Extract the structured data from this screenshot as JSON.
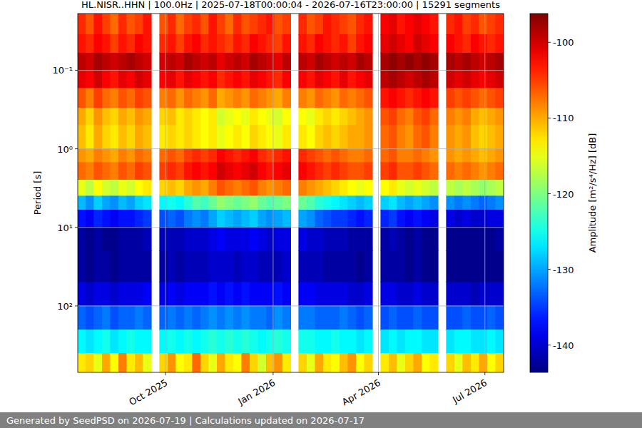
{
  "chart_data": {
    "type": "heatmap",
    "title": "HL.NISR..HHN | 100.0Hz | 2025-07-18T00:00:04 - 2026-07-16T23:00:00 | 15291 segments",
    "y_label": "Period [s]",
    "footer": "Generated by SeedPSD on 2026-07-19 | Calculations updated on 2026-07-17",
    "log": "y",
    "grid": true,
    "xlim": [
      "2025-07-18",
      "2026-07-17"
    ],
    "xticks": [
      {
        "value": "2025-10-01",
        "label": "Oct 2025"
      },
      {
        "value": "2026-01-01",
        "label": "Jan 2026"
      },
      {
        "value": "2026-04-01",
        "label": "Apr 2026"
      },
      {
        "value": "2026-07-01",
        "label": "Jul 2026"
      }
    ],
    "ylim": [
      700,
      0.019
    ],
    "yticks": [
      {
        "value": 0.1,
        "label": "10⁻¹"
      },
      {
        "value": 1,
        "label": "10⁰"
      },
      {
        "value": 10,
        "label": "10¹"
      },
      {
        "value": 100,
        "label": "10²"
      }
    ],
    "colorbar": {
      "label": "Amplitude [m²/s⁴/Hz] [dB]",
      "lim": [
        -143.6,
        -96.2
      ],
      "ticks": [
        -140,
        -130,
        -120,
        -110,
        -100
      ]
    },
    "x_edges": [
      "2025-07-18",
      "2025-07-25",
      "2025-08-01",
      "2025-08-08",
      "2025-08-15",
      "2025-08-22",
      "2025-08-29",
      "2025-09-05",
      "2025-09-12",
      "2025-09-19",
      "2025-09-26",
      "2025-10-03",
      "2025-10-10",
      "2025-10-17",
      "2025-10-24",
      "2025-10-31",
      "2025-11-07",
      "2025-11-14",
      "2025-11-21",
      "2025-11-28",
      "2025-12-05",
      "2025-12-12",
      "2025-12-19",
      "2025-12-26",
      "2026-01-02",
      "2026-01-09",
      "2026-01-16",
      "2026-01-23",
      "2026-01-30",
      "2026-02-06",
      "2026-02-13",
      "2026-02-20",
      "2026-02-27",
      "2026-03-06",
      "2026-03-13",
      "2026-03-20",
      "2026-03-27",
      "2026-04-03",
      "2026-04-10",
      "2026-04-17",
      "2026-04-24",
      "2026-05-01",
      "2026-05-08",
      "2026-05-15",
      "2026-05-22",
      "2026-05-29",
      "2026-06-05",
      "2026-06-12",
      "2026-06-19",
      "2026-06-26",
      "2026-07-03",
      "2026-07-10",
      "2026-07-17"
    ],
    "y_edges": [
      0.019,
      0.035,
      0.06,
      0.1,
      0.17,
      0.3,
      0.5,
      1,
      1.5,
      2.5,
      4,
      6,
      10,
      20,
      50,
      100,
      200,
      400,
      700
    ],
    "cells": [
      [
        -104,
        -106,
        -103,
        -105,
        -107,
        -104,
        -106,
        -105,
        -103,
        null,
        -106,
        -104,
        -107,
        -105,
        -104,
        -106,
        -103,
        -105,
        -107,
        -104,
        -106,
        -105,
        -104,
        -103,
        -106,
        -105,
        null,
        -104,
        -106,
        -105,
        -103,
        -104,
        -105,
        -106,
        -104,
        -103,
        null,
        -102,
        -101,
        -103,
        -102,
        -101,
        -102,
        -103,
        null,
        -104,
        -103,
        -105,
        -104,
        -106,
        -105,
        -104
      ],
      [
        -103,
        -104,
        -102,
        -103,
        -105,
        -103,
        -104,
        -102,
        -103,
        null,
        -104,
        -103,
        -105,
        -103,
        -102,
        -104,
        -103,
        -104,
        -105,
        -103,
        -104,
        -102,
        -103,
        -104,
        -105,
        -103,
        null,
        -103,
        -104,
        -102,
        -103,
        -104,
        -103,
        -105,
        -103,
        -102,
        null,
        -101,
        -100,
        -101,
        -102,
        -100,
        -101,
        -102,
        null,
        -102,
        -103,
        -104,
        -102,
        -103,
        -104,
        -103
      ],
      [
        -99,
        -100,
        -98,
        -99,
        -100,
        -99,
        -98,
        -99,
        -100,
        null,
        -100,
        -99,
        -100,
        -98,
        -99,
        -100,
        -99,
        -101,
        -100,
        -99,
        -100,
        -98,
        -99,
        -100,
        -101,
        -99,
        null,
        -99,
        -100,
        -98,
        -99,
        -100,
        -99,
        -100,
        -98,
        -99,
        null,
        -98,
        -97,
        -98,
        -97,
        -98,
        -97,
        -98,
        null,
        -98,
        -99,
        -98,
        -99,
        -100,
        -99,
        -98
      ],
      [
        -101,
        -102,
        -100,
        -102,
        -103,
        -101,
        -102,
        -100,
        -101,
        null,
        -102,
        -101,
        -103,
        -101,
        -102,
        -103,
        -102,
        -104,
        -103,
        -102,
        -103,
        -101,
        -102,
        -103,
        -104,
        -102,
        null,
        -102,
        -103,
        -101,
        -102,
        -103,
        -101,
        -103,
        -102,
        -101,
        null,
        -99,
        -98,
        -99,
        -100,
        -99,
        -98,
        -99,
        null,
        -100,
        -101,
        -100,
        -101,
        -102,
        -101,
        -100
      ],
      [
        -106,
        -108,
        -105,
        -107,
        -108,
        -106,
        -107,
        -105,
        -106,
        null,
        -108,
        -107,
        -109,
        -107,
        -108,
        -109,
        -107,
        -110,
        -109,
        -108,
        -109,
        -107,
        -108,
        -109,
        -110,
        -108,
        null,
        -108,
        -109,
        -107,
        -108,
        -109,
        -107,
        -108,
        -107,
        -106,
        null,
        -103,
        -102,
        -103,
        -104,
        -103,
        -102,
        -103,
        null,
        -105,
        -106,
        -105,
        -106,
        -107,
        -106,
        -105
      ],
      [
        -110,
        -112,
        -109,
        -111,
        -112,
        -110,
        -111,
        -109,
        -110,
        null,
        -112,
        -111,
        -113,
        -112,
        -113,
        -114,
        -113,
        -116,
        -115,
        -114,
        -115,
        -113,
        -114,
        -115,
        -116,
        -114,
        null,
        -114,
        -115,
        -113,
        -112,
        -113,
        -112,
        -111,
        -110,
        -109,
        null,
        -106,
        -105,
        -107,
        -108,
        -106,
        -105,
        -107,
        null,
        -108,
        -109,
        -108,
        -110,
        -111,
        -110,
        -109
      ],
      [
        -111,
        -113,
        -110,
        -112,
        -113,
        -111,
        -112,
        -110,
        -111,
        null,
        -113,
        -112,
        -113,
        -112,
        -113,
        -114,
        -113,
        -115,
        -114,
        -113,
        -114,
        -112,
        -113,
        -114,
        -115,
        -113,
        null,
        -113,
        -114,
        -112,
        -111,
        -112,
        -111,
        -110,
        -110,
        -109,
        null,
        -107,
        -106,
        -108,
        -109,
        -107,
        -106,
        -108,
        null,
        -109,
        -110,
        -109,
        -111,
        -112,
        -111,
        -110
      ],
      [
        -109,
        -110,
        -108,
        -109,
        -110,
        -108,
        -109,
        -107,
        -108,
        null,
        -107,
        -106,
        -107,
        -105,
        -104,
        -105,
        -104,
        -102,
        -103,
        -104,
        -103,
        -102,
        -104,
        -105,
        -104,
        -103,
        null,
        -104,
        -105,
        -106,
        -107,
        -106,
        -107,
        -108,
        -108,
        -107,
        null,
        -107,
        -106,
        -108,
        -108,
        -107,
        -108,
        -109,
        null,
        -109,
        -110,
        -109,
        -110,
        -111,
        -110,
        -109
      ],
      [
        -107,
        -108,
        -106,
        -107,
        -108,
        -106,
        -107,
        -105,
        -106,
        null,
        -105,
        -104,
        -105,
        -103,
        -102,
        -103,
        -102,
        -100,
        -101,
        -102,
        -101,
        -100,
        -102,
        -103,
        -102,
        -101,
        null,
        -102,
        -103,
        -104,
        -105,
        -104,
        -105,
        -106,
        -106,
        -105,
        null,
        -105,
        -104,
        -106,
        -106,
        -105,
        -106,
        -107,
        null,
        -107,
        -108,
        -107,
        -108,
        -109,
        -108,
        -107
      ],
      [
        -115,
        -117,
        -114,
        -116,
        -117,
        -115,
        -116,
        -114,
        -113,
        null,
        -112,
        -111,
        -112,
        -110,
        -109,
        -110,
        -108,
        -106,
        -107,
        -108,
        -107,
        -106,
        -108,
        -109,
        -108,
        -107,
        null,
        -108,
        -109,
        -110,
        -111,
        -112,
        -113,
        -114,
        -115,
        -114,
        null,
        -114,
        -113,
        -115,
        -116,
        -115,
        -116,
        -117,
        null,
        -117,
        -118,
        -117,
        -118,
        -119,
        -118,
        -117
      ],
      [
        -129,
        -131,
        -128,
        -130,
        -131,
        -129,
        -130,
        -128,
        -127,
        null,
        -126,
        -125,
        -126,
        -124,
        -122,
        -123,
        -121,
        -119,
        -120,
        -121,
        -120,
        -119,
        -121,
        -122,
        -121,
        -120,
        null,
        -121,
        -122,
        -124,
        -125,
        -126,
        -127,
        -128,
        -129,
        -128,
        null,
        -128,
        -127,
        -129,
        -130,
        -129,
        -130,
        -131,
        null,
        -131,
        -132,
        -131,
        -132,
        -133,
        -132,
        -131
      ],
      [
        -137,
        -138,
        -136,
        -137,
        -138,
        -137,
        -137,
        -136,
        -135,
        null,
        -134,
        -133,
        -134,
        -132,
        -131,
        -132,
        -130,
        -128,
        -129,
        -130,
        -129,
        -128,
        -130,
        -131,
        -130,
        -129,
        null,
        -130,
        -131,
        -133,
        -134,
        -135,
        -135,
        -136,
        -137,
        -136,
        null,
        -136,
        -135,
        -137,
        -138,
        -137,
        -138,
        -139,
        null,
        -139,
        -140,
        -139,
        -140,
        -140,
        -139,
        -139
      ],
      [
        -142,
        -143,
        -142,
        -143,
        -143,
        -142,
        -142,
        -142,
        -141,
        null,
        -141,
        -141,
        -141,
        -140,
        -140,
        -140,
        -139,
        -138,
        -139,
        -139,
        -139,
        -138,
        -139,
        -140,
        -139,
        -139,
        null,
        -139,
        -140,
        -140,
        -141,
        -141,
        -141,
        -142,
        -142,
        -142,
        null,
        -142,
        -141,
        -142,
        -143,
        -142,
        -143,
        -143,
        null,
        -143,
        -143,
        -143,
        -143,
        -143,
        -143,
        -142
      ],
      [
        -142,
        -143,
        -142,
        -142,
        -143,
        -142,
        -142,
        -142,
        -142,
        null,
        -142,
        -141,
        -142,
        -141,
        -141,
        -141,
        -140,
        -140,
        -140,
        -141,
        -140,
        -140,
        -141,
        -141,
        -141,
        -140,
        null,
        -141,
        -141,
        -141,
        -142,
        -142,
        -142,
        -142,
        -143,
        -142,
        null,
        -142,
        -142,
        -142,
        -143,
        -142,
        -143,
        -143,
        null,
        -143,
        -143,
        -143,
        -143,
        -143,
        -143,
        -143
      ],
      [
        -139,
        -140,
        -139,
        -139,
        -140,
        -139,
        -139,
        -139,
        -138,
        null,
        -139,
        -138,
        -139,
        -138,
        -138,
        -138,
        -137,
        -138,
        -137,
        -138,
        -137,
        -138,
        -138,
        -138,
        -137,
        -138,
        null,
        -138,
        -138,
        -139,
        -139,
        -139,
        -139,
        -140,
        -140,
        -139,
        null,
        -139,
        -139,
        -140,
        -140,
        -139,
        -140,
        -140,
        null,
        -140,
        -140,
        -140,
        -141,
        -140,
        -140,
        -140
      ],
      [
        -133,
        -134,
        -133,
        -132,
        -134,
        -133,
        -133,
        -132,
        -133,
        null,
        -133,
        -132,
        -133,
        -132,
        -133,
        -132,
        -131,
        -132,
        -131,
        -132,
        -131,
        -132,
        -132,
        -133,
        -131,
        -132,
        null,
        -132,
        -132,
        -133,
        -133,
        -133,
        -132,
        -133,
        -134,
        -133,
        null,
        -134,
        -133,
        -134,
        -134,
        -133,
        -134,
        -134,
        null,
        -134,
        -134,
        -133,
        -134,
        -134,
        -133,
        -134
      ],
      [
        -126,
        -127,
        -126,
        -125,
        -127,
        -126,
        -125,
        -126,
        -126,
        null,
        -126,
        -125,
        -126,
        -125,
        -126,
        -125,
        -124,
        -125,
        -124,
        -125,
        -124,
        -125,
        -126,
        -125,
        -124,
        -125,
        null,
        -125,
        -125,
        -126,
        -126,
        -125,
        -126,
        -126,
        -127,
        -126,
        null,
        -127,
        -126,
        -127,
        -126,
        -126,
        -127,
        -127,
        null,
        -127,
        -126,
        -126,
        -127,
        -127,
        -126,
        -127
      ],
      [
        -113,
        -112,
        -115,
        -110,
        -114,
        -108,
        -113,
        -111,
        -115,
        null,
        -112,
        -109,
        -114,
        -113,
        -107,
        -112,
        -115,
        -110,
        -113,
        -114,
        -108,
        -112,
        -116,
        -111,
        -109,
        -113,
        null,
        -112,
        -115,
        -110,
        -113,
        -114,
        -111,
        -109,
        -114,
        -112,
        null,
        -113,
        -111,
        -115,
        -112,
        -110,
        -114,
        -113,
        null,
        -112,
        -115,
        -111,
        -113,
        -110,
        -114,
        -112
      ]
    ]
  }
}
